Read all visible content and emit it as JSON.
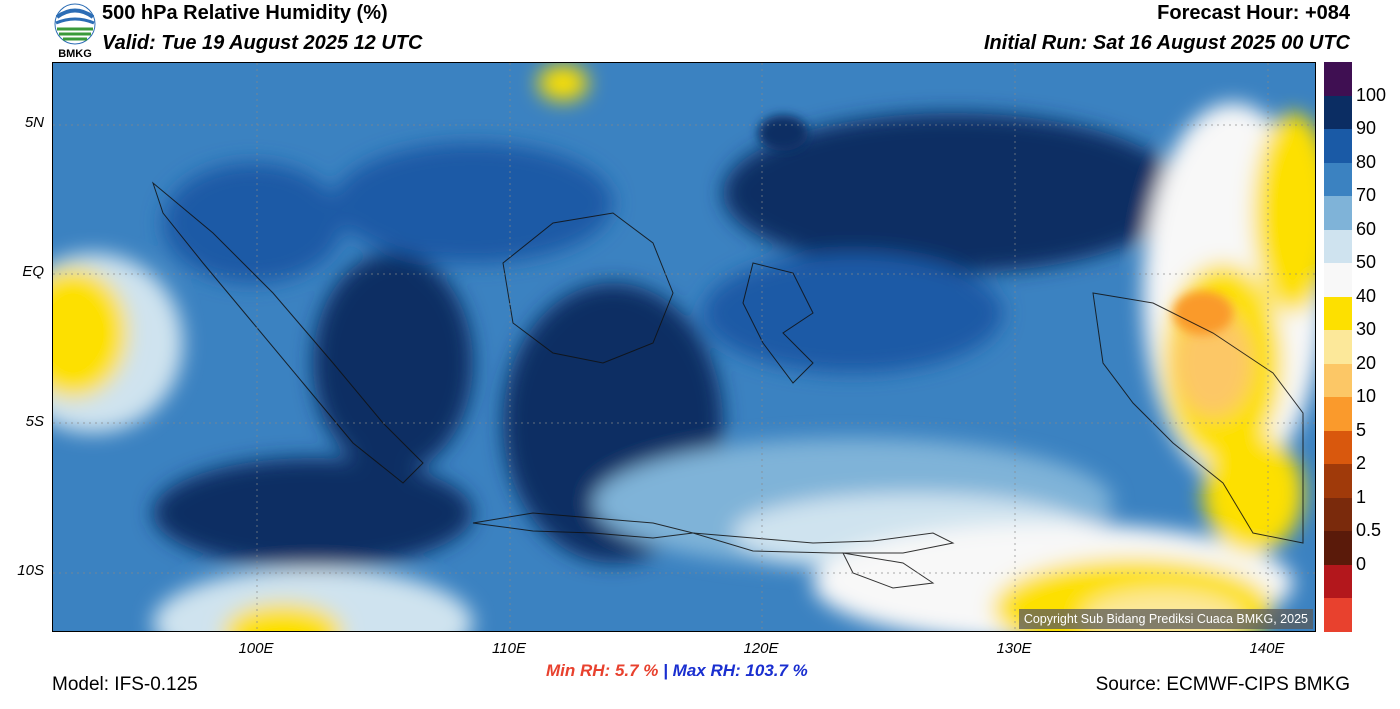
{
  "logo": {
    "text": "BMKG"
  },
  "header": {
    "title": "500 hPa Relative Humidity (%)",
    "valid": "Valid: Tue 19 August 2025 12 UTC",
    "forecast_hour": "Forecast Hour: +084",
    "initial_run": "Initial Run: Sat 16 August 2025 00 UTC"
  },
  "map": {
    "lat_labels": [
      "5N",
      "EQ",
      "5S",
      "10S"
    ],
    "lon_labels": [
      "100E",
      "110E",
      "120E",
      "130E",
      "140E"
    ],
    "copyright": "Copyright Sub Bidang Prediksi Cuaca BMKG, 2025"
  },
  "colorbar": {
    "labels": [
      "100",
      "90",
      "80",
      "70",
      "60",
      "50",
      "40",
      "30",
      "20",
      "10",
      "5",
      "2",
      "1",
      "0.5",
      "0"
    ],
    "colors": [
      "#3f0f52",
      "#0b2d63",
      "#1a5aa6",
      "#3b82c1",
      "#7fb3d8",
      "#cfe3ef",
      "#f8f8f8",
      "#fde000",
      "#fce89a",
      "#fcc766",
      "#fa9a2c",
      "#d9580d",
      "#a03a0a",
      "#7a2a0c",
      "#5a1a0a",
      "#b3171c",
      "#e8412e"
    ]
  },
  "stats": {
    "min_label": "Min RH:",
    "min_value": "5.7 %",
    "separator": "|",
    "max_label": "Max RH: 103.7 %"
  },
  "footer": {
    "model": "Model: IFS-0.125",
    "source": "Source: ECMWF-CIPS BMKG"
  }
}
